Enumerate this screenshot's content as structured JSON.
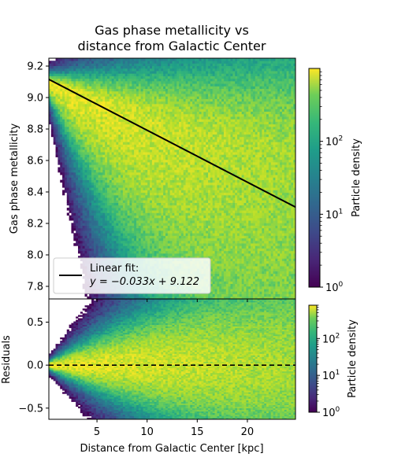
{
  "chart_data": [
    {
      "type": "heatmap",
      "title": "Gas phase metallicity vs\ndistance from Galactic Center",
      "ylabel": "Gas phase metallicity",
      "xlim": [
        0.2,
        24.8
      ],
      "ylim": [
        7.72,
        9.25
      ],
      "xticks": [
        5,
        10,
        15,
        20
      ],
      "yticks": [
        7.8,
        8.0,
        8.2,
        8.4,
        8.6,
        8.8,
        9.0,
        9.2
      ],
      "ytick_labels": [
        "7.8",
        "8.0",
        "8.2",
        "8.4",
        "8.6",
        "8.8",
        "9.0",
        "9.2"
      ],
      "fit": {
        "slope": -0.033,
        "intercept": 9.122,
        "color": "#000000"
      },
      "legend": {
        "line1": "Linear fit:",
        "line2": "y = −0.033x + 9.122",
        "placement": "lower-left"
      },
      "density_model": {
        "bins_x": 110,
        "bins_y": 95,
        "ridge": {
          "y0": 9.1,
          "slope": -0.03,
          "bend": 0.001
        },
        "lower_spread": {
          "base": 0.03,
          "growth": 0.045
        },
        "upper_spread": {
          "base": 0.02,
          "growth": 0.012
        },
        "peak_density": 900
      },
      "colorbar": {
        "label": "Particle density",
        "scale": "log",
        "range": [
          1,
          1000
        ],
        "ticks": [
          1,
          10,
          100
        ]
      }
    },
    {
      "type": "heatmap",
      "xlabel": "Distance from Galactic Center [kpc]",
      "ylabel": "Residuals",
      "xlim": [
        0.2,
        24.8
      ],
      "ylim": [
        -0.63,
        0.77
      ],
      "xticks": [
        5,
        10,
        15,
        20
      ],
      "yticks": [
        -0.5,
        0.0,
        0.5
      ],
      "ytick_labels": [
        "−0.5",
        "0.0",
        "0.5"
      ],
      "zero_line": {
        "y": 0.0,
        "style": "dashed",
        "color": "#000000"
      },
      "density_model": {
        "bins_x": 110,
        "bins_y": 75,
        "ridge": {
          "y0": 0.0,
          "slope": -0.001
        },
        "lower_spread": {
          "base": 0.015,
          "growth": 0.022
        },
        "upper_spread": {
          "base": 0.015,
          "growth": 0.026
        },
        "peak_density": 800
      },
      "colorbar": {
        "label": "Particle density",
        "scale": "log",
        "range": [
          1,
          800
        ],
        "ticks": [
          1,
          10,
          100
        ]
      }
    }
  ],
  "labels": {
    "cb_exp_base": "10",
    "cb_top_exps": [
      "0",
      "1",
      "2"
    ],
    "cb_bot_exps": [
      "0",
      "1",
      "2"
    ],
    "xtick_labels": [
      "5",
      "10",
      "15",
      "20"
    ]
  }
}
